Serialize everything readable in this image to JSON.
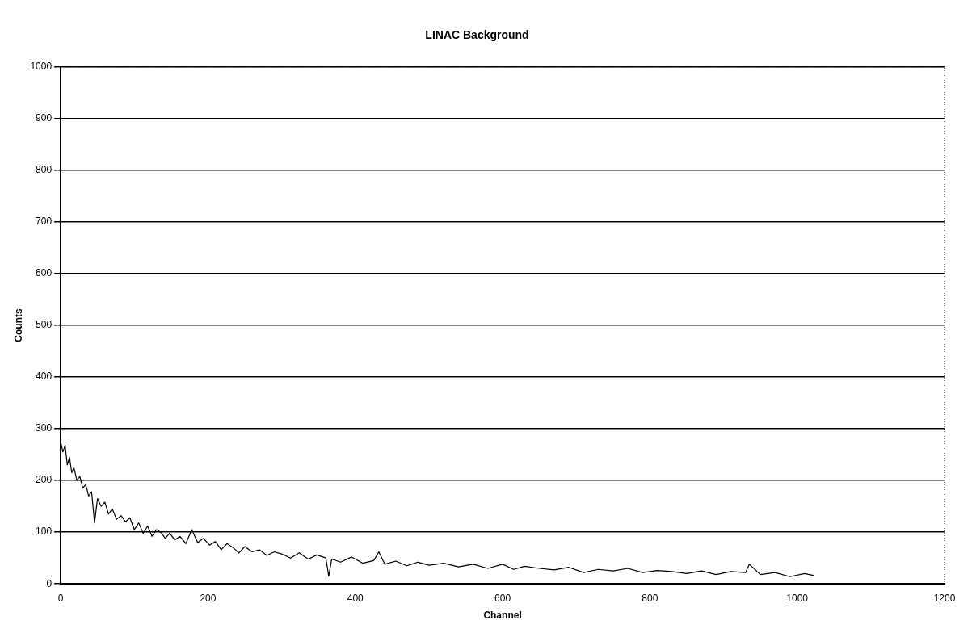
{
  "chart_data": {
    "type": "line",
    "title": "LINAC Background",
    "xlabel": "Channel",
    "ylabel": "Counts",
    "xlim": [
      0,
      1200
    ],
    "ylim": [
      0,
      1000
    ],
    "xticks": [
      0,
      200,
      400,
      600,
      800,
      1000,
      1200
    ],
    "yticks": [
      0,
      100,
      200,
      300,
      400,
      500,
      600,
      700,
      800,
      900,
      1000
    ],
    "grid": "y",
    "legend": false,
    "marker": "none",
    "line_style": "solid",
    "series": [
      {
        "color": "#000000",
        "x": [
          0,
          3,
          6,
          9,
          12,
          15,
          18,
          22,
          26,
          30,
          34,
          38,
          42,
          46,
          50,
          55,
          60,
          65,
          70,
          76,
          82,
          88,
          94,
          100,
          106,
          112,
          118,
          124,
          130,
          136,
          142,
          148,
          155,
          162,
          170,
          178,
          186,
          194,
          202,
          210,
          218,
          226,
          234,
          242,
          250,
          260,
          270,
          280,
          290,
          300,
          312,
          324,
          336,
          348,
          360,
          364,
          368,
          380,
          395,
          410,
          425,
          432,
          440,
          455,
          470,
          485,
          500,
          520,
          540,
          560,
          580,
          600,
          615,
          630,
          650,
          670,
          690,
          710,
          730,
          750,
          770,
          790,
          810,
          830,
          850,
          870,
          890,
          910,
          930,
          935,
          950,
          970,
          990,
          1010,
          1023
        ],
        "values": [
          275,
          255,
          268,
          230,
          245,
          215,
          225,
          200,
          208,
          185,
          192,
          170,
          178,
          118,
          165,
          150,
          158,
          135,
          145,
          125,
          132,
          120,
          128,
          105,
          118,
          98,
          112,
          92,
          105,
          100,
          88,
          98,
          85,
          92,
          78,
          105,
          80,
          88,
          75,
          82,
          66,
          78,
          70,
          60,
          72,
          62,
          66,
          55,
          62,
          58,
          50,
          60,
          48,
          56,
          50,
          15,
          48,
          42,
          52,
          40,
          45,
          62,
          38,
          44,
          35,
          42,
          36,
          40,
          33,
          38,
          30,
          38,
          28,
          34,
          30,
          27,
          32,
          22,
          28,
          25,
          30,
          22,
          26,
          24,
          20,
          25,
          18,
          24,
          22,
          38,
          18,
          22,
          14,
          20,
          16
        ]
      }
    ]
  }
}
